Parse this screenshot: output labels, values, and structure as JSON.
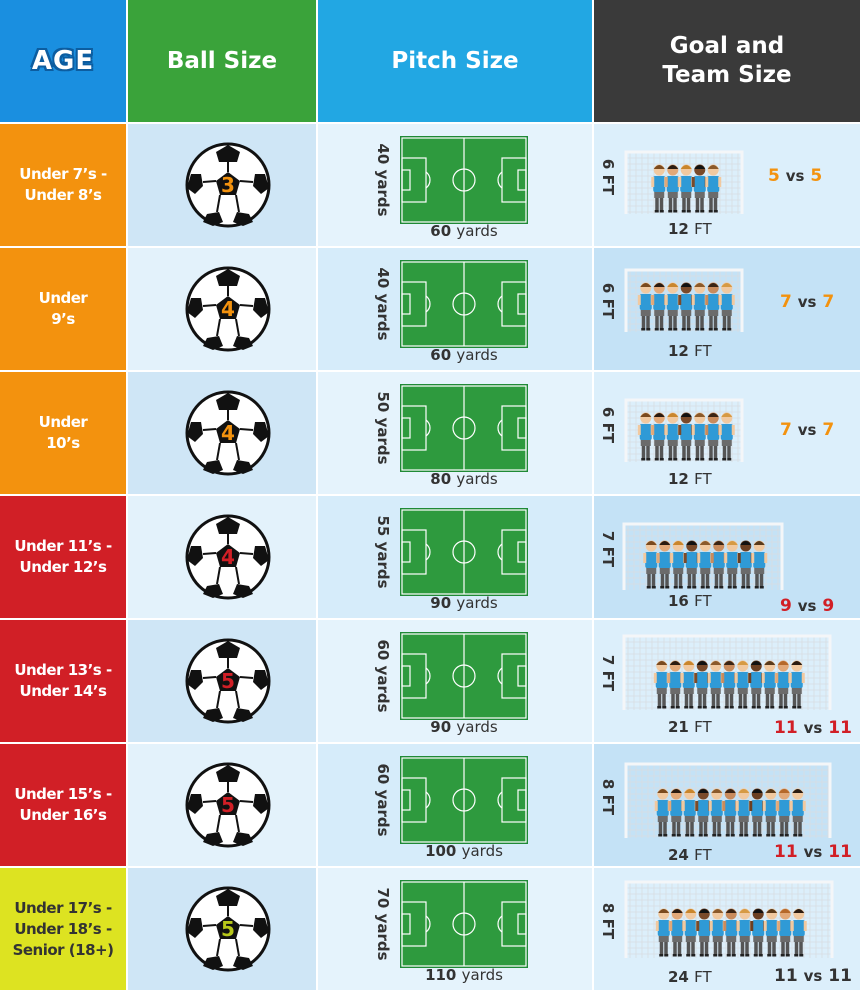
{
  "headers": {
    "age": "AGE",
    "ball": "Ball Size",
    "pitch": "Pitch Size",
    "goal_line1": "Goal and",
    "goal_line2": "Team Size"
  },
  "colors": {
    "age_header": "#1a8fe0",
    "ball_header": "#3aa33a",
    "pitch_header": "#22a7e3",
    "goal_header": "#3a3a3a",
    "orange": "#f3920e",
    "red": "#d11f26",
    "lime": "#dde321",
    "pitch_green": "#2e9a3e"
  },
  "rows": [
    {
      "age": [
        "Under 7’s -",
        "Under 8’s"
      ],
      "ball": "3",
      "pitch_w": "40",
      "pitch_l": "60",
      "unit": "yards",
      "goal_h": "6 FT",
      "goal_w": "12",
      "ft": "FT",
      "team_a": "5",
      "vs": "vs",
      "team_b": "5"
    },
    {
      "age": [
        "Under",
        "9’s"
      ],
      "ball": "4",
      "pitch_w": "40",
      "pitch_l": "60",
      "unit": "yards",
      "goal_h": "6 FT",
      "goal_w": "12",
      "ft": "FT",
      "team_a": "7",
      "vs": "vs",
      "team_b": "7"
    },
    {
      "age": [
        "Under",
        "10’s"
      ],
      "ball": "4",
      "pitch_w": "50",
      "pitch_l": "80",
      "unit": "yards",
      "goal_h": "6 FT",
      "goal_w": "12",
      "ft": "FT",
      "team_a": "7",
      "vs": "vs",
      "team_b": "7"
    },
    {
      "age": [
        "Under 11’s -",
        "Under 12’s"
      ],
      "ball": "4",
      "pitch_w": "55",
      "pitch_l": "90",
      "unit": "yards",
      "goal_h": "7 FT",
      "goal_w": "16",
      "ft": "FT",
      "team_a": "9",
      "vs": "vs",
      "team_b": "9"
    },
    {
      "age": [
        "Under 13’s -",
        "Under 14’s"
      ],
      "ball": "5",
      "pitch_w": "60",
      "pitch_l": "90",
      "unit": "yards",
      "goal_h": "7 FT",
      "goal_w": "21",
      "ft": "FT",
      "team_a": "11",
      "vs": "vs",
      "team_b": "11"
    },
    {
      "age": [
        "Under 15’s -",
        "Under 16’s"
      ],
      "ball": "5",
      "pitch_w": "60",
      "pitch_l": "100",
      "unit": "yards",
      "goal_h": "8 FT",
      "goal_w": "24",
      "ft": "FT",
      "team_a": "11",
      "vs": "vs",
      "team_b": "11"
    },
    {
      "age": [
        "Under 17’s -",
        "Under 18’s -",
        "Senior (18+)"
      ],
      "ball": "5",
      "pitch_w": "70",
      "pitch_l": "110",
      "unit": "yards",
      "goal_h": "8 FT",
      "goal_w": "24",
      "ft": "FT",
      "team_a": "11",
      "vs": "vs",
      "team_b": "11"
    }
  ]
}
